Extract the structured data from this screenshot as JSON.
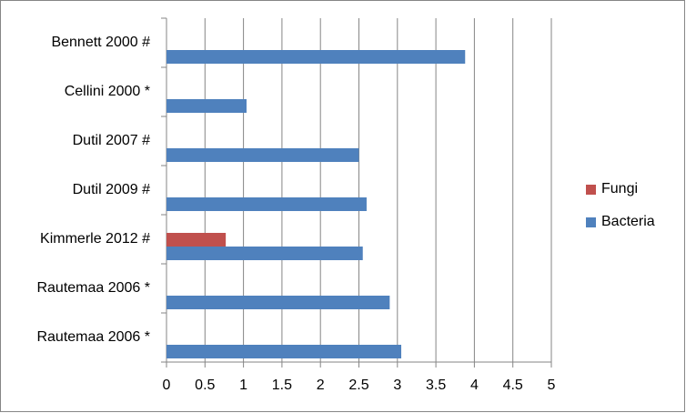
{
  "chart_data": {
    "type": "hbar",
    "categories": [
      "Bennett 2000 #",
      "Cellini 2000 *",
      "Dutil 2007 #",
      "Dutil 2009 #",
      "Kimmerle 2012 #",
      "Rautemaa 2006 *",
      "Rautemaa 2006 *"
    ],
    "series": [
      {
        "name": "Fungi",
        "color": "#c0504d",
        "values": [
          null,
          null,
          null,
          null,
          0.77,
          null,
          null
        ]
      },
      {
        "name": "Bacteria",
        "color": "#4f81bd",
        "values": [
          3.88,
          1.04,
          2.5,
          2.6,
          2.55,
          2.9,
          3.05
        ]
      }
    ],
    "xlim": [
      0,
      5
    ],
    "xticks": [
      0,
      0.5,
      1,
      1.5,
      2,
      2.5,
      3,
      3.5,
      4,
      4.5,
      5
    ],
    "grid": true,
    "legend": "right"
  }
}
